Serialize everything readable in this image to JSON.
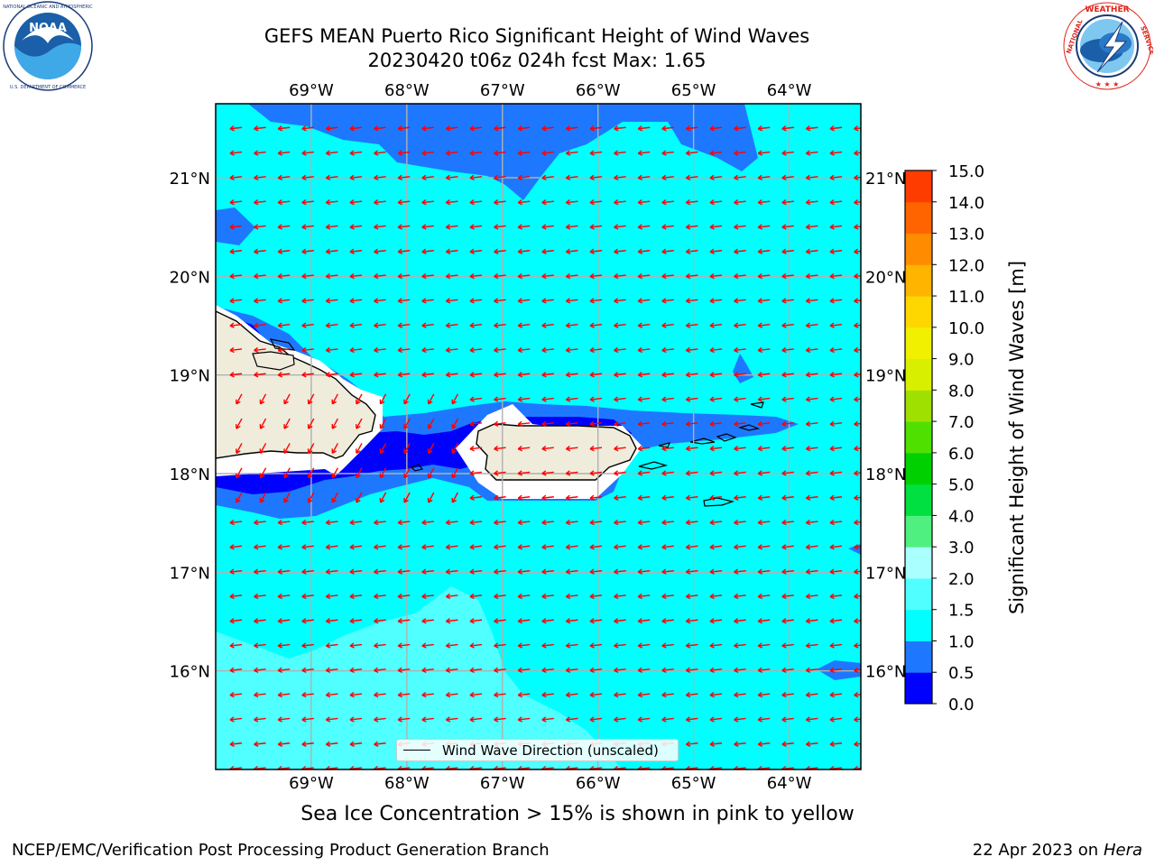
{
  "title": {
    "line1": "GEFS MEAN Puerto Rico Significant Height of Wind Waves",
    "line2": "20230420 t06z 024h fcst   Max: 1.65"
  },
  "logos": {
    "left": {
      "name": "noaa-logo",
      "text": "NOAA",
      "ring_text": "NATIONAL OCEANIC AND ATMOSPHERIC ADMINISTRATION · U.S. DEPARTMENT OF COMMERCE",
      "color": "#1a5fa8"
    },
    "right": {
      "name": "nws-logo",
      "ring_text": "NATIONAL WEATHER SERVICE",
      "color": "#e0241a"
    }
  },
  "map": {
    "lon_range": [
      -70.0,
      -63.25
    ],
    "lat_range": [
      15.0,
      21.75
    ],
    "lon_labels": [
      "69°W",
      "68°W",
      "67°W",
      "66°W",
      "65°W",
      "64°W"
    ],
    "lon_values": [
      -69,
      -68,
      -67,
      -66,
      -65,
      -64
    ],
    "lat_labels": [
      "21°N",
      "20°N",
      "19°N",
      "18°N",
      "17°N",
      "16°N"
    ],
    "lat_values": [
      21,
      20,
      19,
      18,
      17,
      16
    ],
    "grid": true,
    "field": "Significant Height of Wind Waves",
    "max_value": 1.65,
    "arrow_color": "#ff0000",
    "arrow_direction": "east-to-west (westward)",
    "land_color": "#efecdc",
    "colors": {
      "0.0-0.5": "#0000ff",
      "0.5-1.0": "#1e78ff",
      "1.0-1.5": "#00ffff",
      "1.5-2.0": "#50ffff"
    }
  },
  "colorbar": {
    "label": "Significant Height of Wind Waves [m]",
    "ticks": [
      "15.0",
      "14.0",
      "13.0",
      "12.0",
      "11.0",
      "10.0",
      "9.0",
      "8.0",
      "7.0",
      "6.0",
      "5.0",
      "4.0",
      "3.0",
      "2.0",
      "1.5",
      "1.0",
      "0.5",
      "0.0"
    ],
    "colors": [
      "#0000ff",
      "#1e78ff",
      "#00ffff",
      "#50ffff",
      "#aaffff",
      "#50f080",
      "#00e040",
      "#00d000",
      "#50e000",
      "#a0e000",
      "#d8f000",
      "#f0f000",
      "#ffd700",
      "#ffb400",
      "#ff8c00",
      "#ff6400",
      "#ff3c00",
      "#ff0000"
    ]
  },
  "legend": {
    "label": "Wind Wave Direction (unscaled)"
  },
  "caption": "Sea Ice Concentration > 15% is shown in pink to yellow",
  "footer": {
    "left": "NCEP/EMC/Verification Post Processing Product Generation Branch",
    "right_prefix": "22 Apr 2023 on ",
    "right_machine": "Hera"
  }
}
